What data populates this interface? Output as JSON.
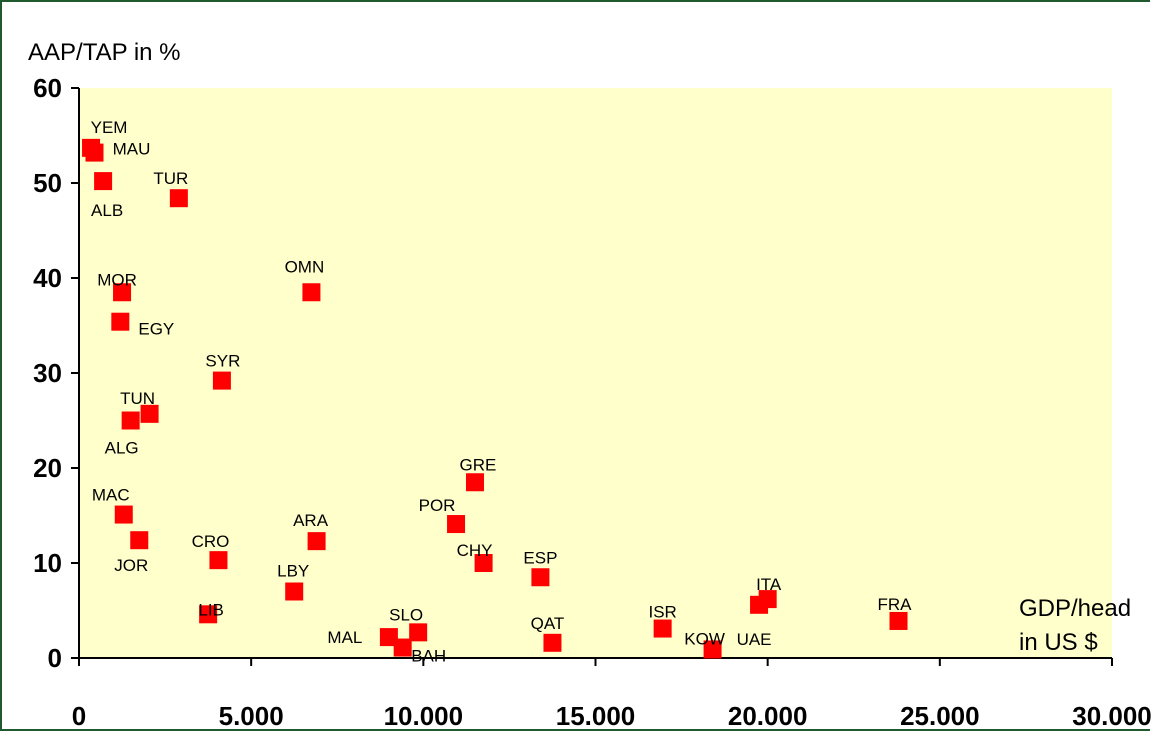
{
  "chart_data": {
    "type": "scatter",
    "title": "",
    "ylabel": "AAP/TAP in %",
    "xlabel_line1": "GDP/head",
    "xlabel_line2": "in US $",
    "xlim": [
      0,
      30000
    ],
    "ylim": [
      0,
      60
    ],
    "x_ticks": [
      0,
      5000,
      10000,
      15000,
      20000,
      25000,
      30000
    ],
    "x_tick_labels": [
      "0",
      "5.000",
      "10.000",
      "15.000",
      "20.000",
      "25.000",
      "30.000"
    ],
    "y_ticks": [
      0,
      10,
      20,
      30,
      40,
      50,
      60
    ],
    "y_tick_labels": [
      "0",
      "10",
      "20",
      "30",
      "40",
      "50",
      "60"
    ],
    "grid": false,
    "plot_background": "#ffffcc",
    "marker_color": "#ff0000",
    "points": [
      {
        "label": "YEM",
        "x": 350,
        "y": 53.7
      },
      {
        "label": "MAU",
        "x": 450,
        "y": 53.2
      },
      {
        "label": "ALB",
        "x": 700,
        "y": 50.2
      },
      {
        "label": "TUR",
        "x": 2900,
        "y": 48.4
      },
      {
        "label": "MOR",
        "x": 1250,
        "y": 38.5
      },
      {
        "label": "OMN",
        "x": 6750,
        "y": 38.5
      },
      {
        "label": "EGY",
        "x": 1200,
        "y": 35.4
      },
      {
        "label": "SYR",
        "x": 4150,
        "y": 29.2
      },
      {
        "label": "TUN",
        "x": 2050,
        "y": 25.7
      },
      {
        "label": "ALG",
        "x": 1500,
        "y": 25.0
      },
      {
        "label": "GRE",
        "x": 11500,
        "y": 18.5
      },
      {
        "label": "MAC",
        "x": 1300,
        "y": 15.1
      },
      {
        "label": "POR",
        "x": 10950,
        "y": 14.1
      },
      {
        "label": "JOR",
        "x": 1750,
        "y": 12.4
      },
      {
        "label": "ARA",
        "x": 6900,
        "y": 12.3
      },
      {
        "label": "CRO",
        "x": 4050,
        "y": 10.3
      },
      {
        "label": "CHY",
        "x": 11750,
        "y": 10.0
      },
      {
        "label": "ESP",
        "x": 13400,
        "y": 8.5
      },
      {
        "label": "LBY",
        "x": 6250,
        "y": 7.0
      },
      {
        "label": "ITA",
        "x": 20000,
        "y": 6.2
      },
      {
        "label": "UAE",
        "x": 19750,
        "y": 5.6
      },
      {
        "label": "LIB",
        "x": 3750,
        "y": 4.6
      },
      {
        "label": "FRA",
        "x": 23800,
        "y": 3.9
      },
      {
        "label": "ISR",
        "x": 16950,
        "y": 3.1
      },
      {
        "label": "SLO",
        "x": 9850,
        "y": 2.7
      },
      {
        "label": "MAL",
        "x": 9000,
        "y": 2.2
      },
      {
        "label": "QAT",
        "x": 13750,
        "y": 1.6
      },
      {
        "label": "BAH",
        "x": 9400,
        "y": 1.1
      },
      {
        "label": "KOW",
        "x": 18400,
        "y": 0.9
      }
    ]
  }
}
